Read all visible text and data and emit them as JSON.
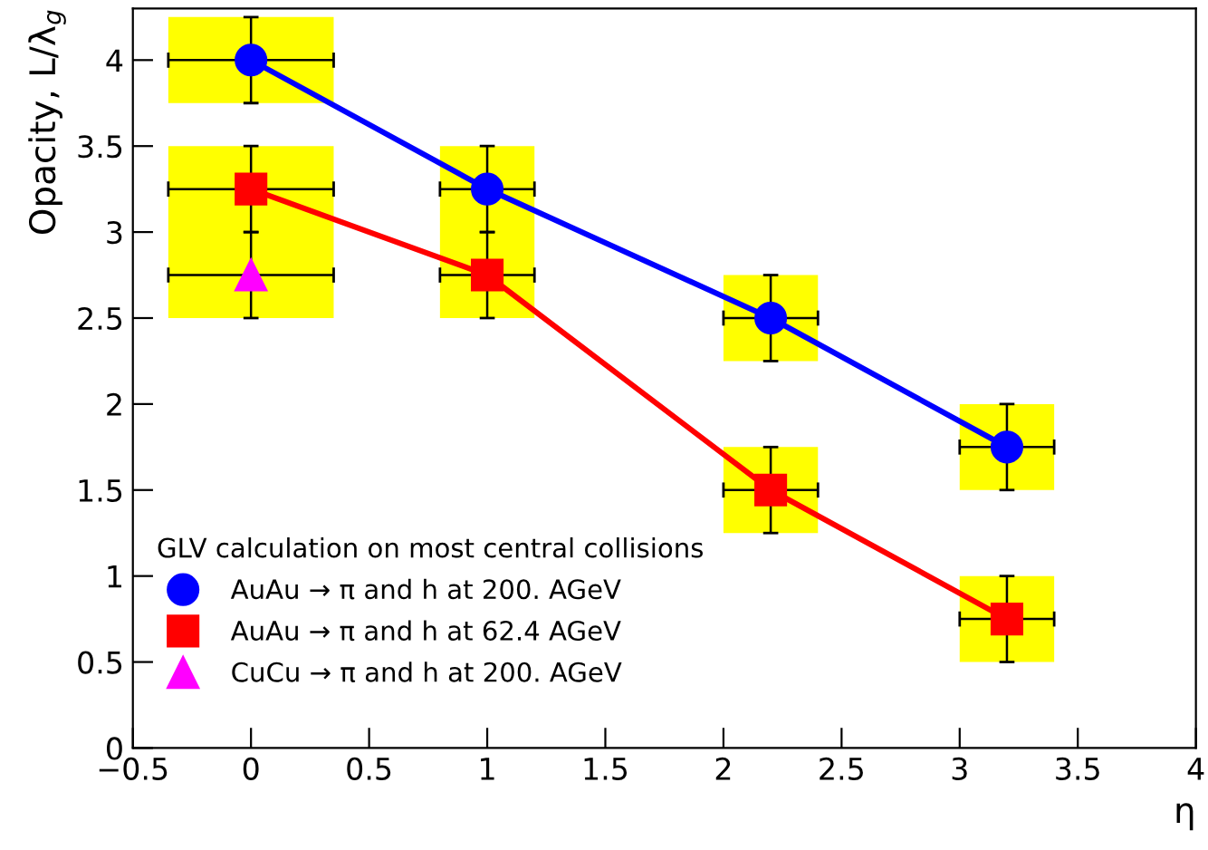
{
  "chart_data": {
    "type": "line",
    "xlabel": "η",
    "ylabel": "Opacity, L/λ$_{g}$",
    "legend_title": "GLV calculation on most central collisions",
    "legend": "bottom left",
    "xlim": [
      -0.5,
      4
    ],
    "ylim": [
      0,
      4.3
    ],
    "xticks": [
      {
        "value": -0.5,
        "label": "−0.5"
      },
      0,
      0.5,
      1,
      1.5,
      2,
      2.5,
      3,
      3.5,
      4
    ],
    "yticks": [
      0,
      0.5,
      1,
      1.5,
      2,
      2.5,
      3,
      3.5,
      4
    ],
    "series": [
      {
        "name": "AuAu → π and h at 200. AGeV",
        "color": "#0000ff",
        "marker": "circle",
        "line_style": "solid",
        "x": [
          0,
          1,
          2.2,
          3.2
        ],
        "values": [
          4,
          3.25,
          2.5,
          1.75
        ],
        "errors": [
          0.25,
          0.25,
          0.25,
          0.25
        ],
        "xerrors": [
          0.35,
          0.2,
          0.2,
          0.2
        ]
      },
      {
        "name": "AuAu → π and h at 62.4 AGeV",
        "color": "#ff0000",
        "marker": "square",
        "line_style": "solid",
        "x": [
          0,
          1,
          2.2,
          3.2
        ],
        "values": [
          3.25,
          2.75,
          1.5,
          0.75
        ],
        "errors": [
          0.25,
          0.25,
          0.25,
          0.25
        ],
        "xerrors": [
          0.35,
          0.2,
          0.2,
          0.2
        ]
      },
      {
        "name": "CuCu → π and h at 200. AGeV",
        "type": "scatter",
        "color": "#ff00ff",
        "marker": "triangle",
        "x": [
          0
        ],
        "values": [
          2.75
        ],
        "errors": [
          0.25
        ],
        "xerrors": [
          0.35
        ]
      }
    ]
  }
}
